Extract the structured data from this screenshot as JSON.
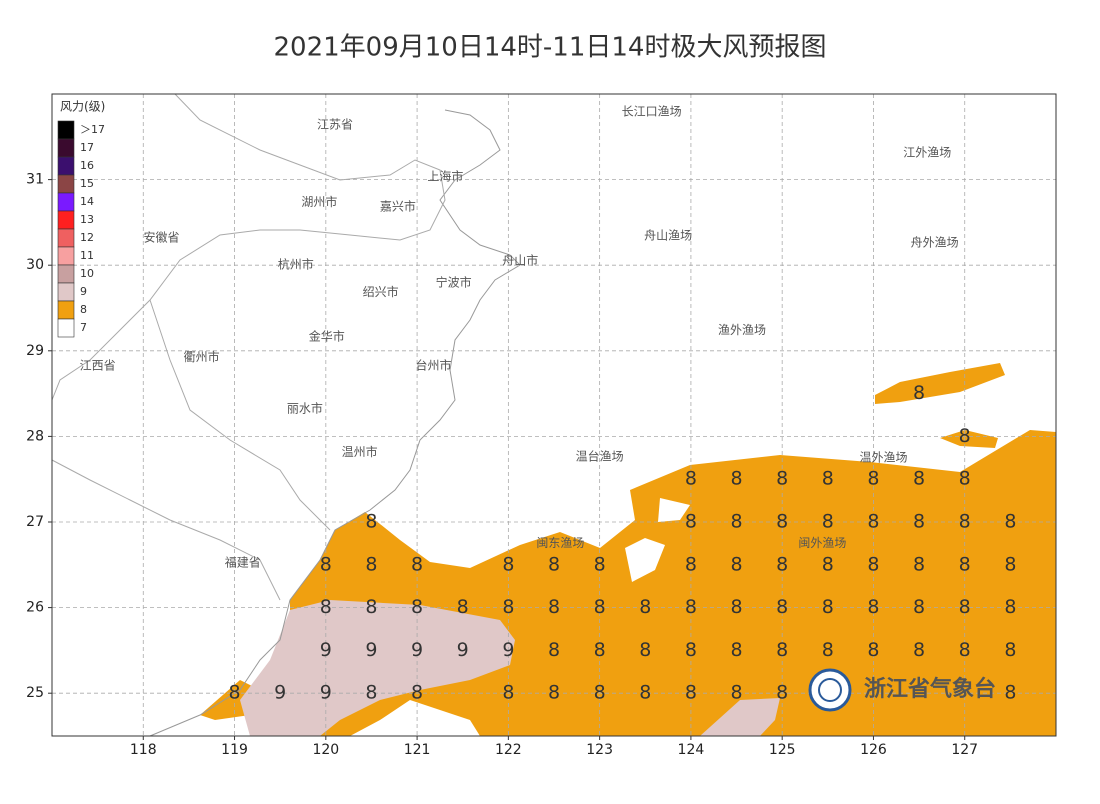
{
  "header": {
    "title": "2021年09月10日14时-11日14时极大风预报图"
  },
  "map": {
    "xlim": [
      117,
      128
    ],
    "ylim": [
      24.5,
      32
    ],
    "xticks": [
      118,
      119,
      120,
      121,
      122,
      123,
      124,
      125,
      126,
      127
    ],
    "yticks": [
      25,
      26,
      27,
      28,
      29,
      30,
      31
    ],
    "grid": true
  },
  "legend": {
    "title": "风力(级)",
    "items": [
      {
        "label": "＞17",
        "color": "#000000"
      },
      {
        "label": "17",
        "color": "#3a0a2e"
      },
      {
        "label": "16",
        "color": "#3b0f6e"
      },
      {
        "label": "15",
        "color": "#8b4545"
      },
      {
        "label": "14",
        "color": "#7a1aff"
      },
      {
        "label": "13",
        "color": "#ff2020"
      },
      {
        "label": "12",
        "color": "#ef6060"
      },
      {
        "label": "11",
        "color": "#f7a0a0"
      },
      {
        "label": "10",
        "color": "#c8a0a0"
      },
      {
        "label": "9",
        "color": "#e0c8c8"
      },
      {
        "label": "8",
        "color": "#f0a010"
      },
      {
        "label": "7",
        "color": "#ffffff"
      }
    ]
  },
  "places": [
    {
      "name": "江苏省",
      "lon": 120.1,
      "lat": 31.64
    },
    {
      "name": "长江口渔场",
      "lon": 123.57,
      "lat": 31.79
    },
    {
      "name": "江外渔场",
      "lon": 126.59,
      "lat": 31.31
    },
    {
      "name": "上海市",
      "lon": 121.31,
      "lat": 31.03
    },
    {
      "name": "湖州市",
      "lon": 119.93,
      "lat": 30.73
    },
    {
      "name": "嘉兴市",
      "lon": 120.79,
      "lat": 30.68
    },
    {
      "name": "安徽省",
      "lon": 118.2,
      "lat": 30.32
    },
    {
      "name": "舟山渔场",
      "lon": 123.75,
      "lat": 30.34
    },
    {
      "name": "舟外渔场",
      "lon": 126.67,
      "lat": 30.26
    },
    {
      "name": "杭州市",
      "lon": 119.67,
      "lat": 30.0
    },
    {
      "name": "舟山市",
      "lon": 122.13,
      "lat": 30.05
    },
    {
      "name": "宁波市",
      "lon": 121.4,
      "lat": 29.79
    },
    {
      "name": "绍兴市",
      "lon": 120.6,
      "lat": 29.68
    },
    {
      "name": "渔外渔场",
      "lon": 124.56,
      "lat": 29.24
    },
    {
      "name": "金华市",
      "lon": 120.01,
      "lat": 29.16
    },
    {
      "name": "衢州市",
      "lon": 118.64,
      "lat": 28.92
    },
    {
      "name": "台州市",
      "lon": 121.18,
      "lat": 28.82
    },
    {
      "name": "江西省",
      "lon": 117.5,
      "lat": 28.82
    },
    {
      "name": "丽水市",
      "lon": 119.77,
      "lat": 28.32
    },
    {
      "name": "温州市",
      "lon": 120.37,
      "lat": 27.81
    },
    {
      "name": "温台渔场",
      "lon": 123.0,
      "lat": 27.76
    },
    {
      "name": "温外渔场",
      "lon": 126.11,
      "lat": 27.75
    },
    {
      "name": "闽东渔场",
      "lon": 122.57,
      "lat": 26.75
    },
    {
      "name": "闽外渔场",
      "lon": 125.44,
      "lat": 26.75
    },
    {
      "name": "福建省",
      "lon": 119.09,
      "lat": 26.52
    }
  ],
  "wind_labels": [
    [
      126.5,
      28.5,
      8
    ],
    [
      127,
      28,
      8
    ],
    [
      124,
      27.5,
      8
    ],
    [
      124.5,
      27.5,
      8
    ],
    [
      125,
      27.5,
      8
    ],
    [
      125.5,
      27.5,
      8
    ],
    [
      126,
      27.5,
      8
    ],
    [
      126.5,
      27.5,
      8
    ],
    [
      127,
      27.5,
      8
    ],
    [
      120.5,
      27,
      8
    ],
    [
      124,
      27,
      8
    ],
    [
      124.5,
      27,
      8
    ],
    [
      125,
      27,
      8
    ],
    [
      125.5,
      27,
      8
    ],
    [
      126,
      27,
      8
    ],
    [
      126.5,
      27,
      8
    ],
    [
      127,
      27,
      8
    ],
    [
      127.5,
      27,
      8
    ],
    [
      120,
      26.5,
      8
    ],
    [
      120.5,
      26.5,
      8
    ],
    [
      121,
      26.5,
      8
    ],
    [
      122,
      26.5,
      8
    ],
    [
      122.5,
      26.5,
      8
    ],
    [
      123,
      26.5,
      8
    ],
    [
      124,
      26.5,
      8
    ],
    [
      124.5,
      26.5,
      8
    ],
    [
      125,
      26.5,
      8
    ],
    [
      125.5,
      26.5,
      8
    ],
    [
      126,
      26.5,
      8
    ],
    [
      126.5,
      26.5,
      8
    ],
    [
      127,
      26.5,
      8
    ],
    [
      127.5,
      26.5,
      8
    ],
    [
      120,
      26,
      8
    ],
    [
      120.5,
      26,
      8
    ],
    [
      121,
      26,
      8
    ],
    [
      121.5,
      26,
      8
    ],
    [
      122,
      26,
      8
    ],
    [
      122.5,
      26,
      8
    ],
    [
      123,
      26,
      8
    ],
    [
      123.5,
      26,
      8
    ],
    [
      124,
      26,
      8
    ],
    [
      124.5,
      26,
      8
    ],
    [
      125,
      26,
      8
    ],
    [
      125.5,
      26,
      8
    ],
    [
      126,
      26,
      8
    ],
    [
      126.5,
      26,
      8
    ],
    [
      127,
      26,
      8
    ],
    [
      127.5,
      26,
      8
    ],
    [
      120,
      25.5,
      9
    ],
    [
      120.5,
      25.5,
      9
    ],
    [
      121,
      25.5,
      9
    ],
    [
      121.5,
      25.5,
      9
    ],
    [
      122,
      25.5,
      9
    ],
    [
      122.5,
      25.5,
      8
    ],
    [
      123,
      25.5,
      8
    ],
    [
      123.5,
      25.5,
      8
    ],
    [
      124,
      25.5,
      8
    ],
    [
      124.5,
      25.5,
      8
    ],
    [
      125,
      25.5,
      8
    ],
    [
      125.5,
      25.5,
      8
    ],
    [
      126,
      25.5,
      8
    ],
    [
      126.5,
      25.5,
      8
    ],
    [
      127,
      25.5,
      8
    ],
    [
      127.5,
      25.5,
      8
    ],
    [
      119,
      25,
      8
    ],
    [
      119.5,
      25,
      9
    ],
    [
      120,
      25,
      9
    ],
    [
      120.5,
      25,
      8
    ],
    [
      121,
      25,
      8
    ],
    [
      122,
      25,
      8
    ],
    [
      122.5,
      25,
      8
    ],
    [
      123,
      25,
      8
    ],
    [
      123.5,
      25,
      8
    ],
    [
      124,
      25,
      8
    ],
    [
      124.5,
      25,
      8
    ],
    [
      125,
      25,
      8
    ],
    [
      127.5,
      25,
      8
    ]
  ],
  "logo": {
    "text": "浙江省气象台"
  }
}
